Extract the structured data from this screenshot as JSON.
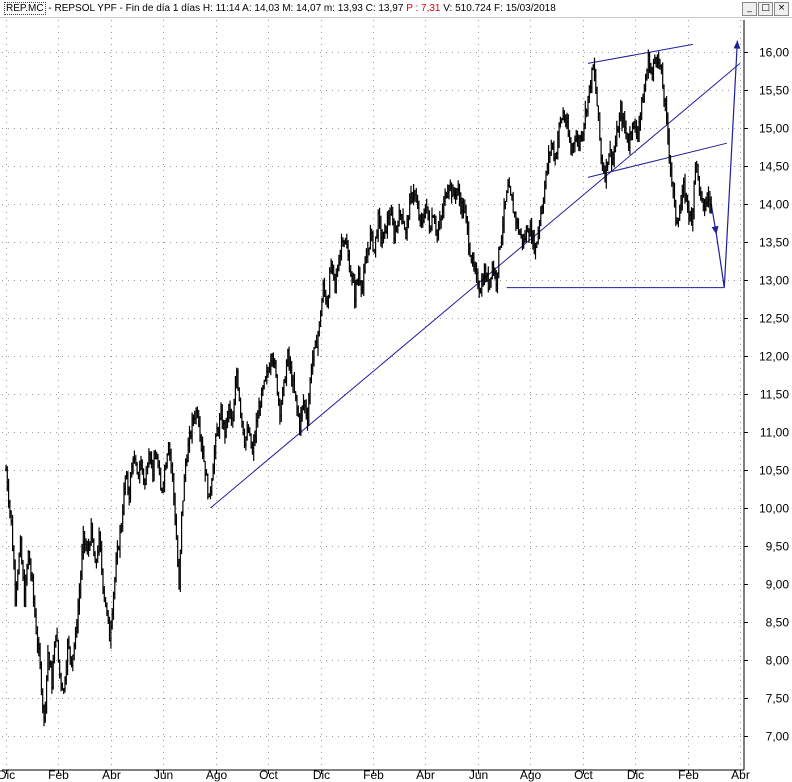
{
  "window": {
    "symbol": "REP.MC",
    "title_rest": " - REPSOL YPF - Fin de día 1 días  H: 11:14  A: 14,03  M: 14,07  m: 13,93  C: 13,97  ",
    "p_value": "P : 7,31",
    "title_tail": "  V: 510.724  F: 15/03/2018",
    "buttons": {
      "minimize": "_",
      "restore": "□",
      "close": "×"
    }
  },
  "chart_data": {
    "type": "line",
    "style": "daily OHLC price bars (black) with blue trendline annotations",
    "y_axis_side": "right",
    "ylim": [
      7.0,
      16.0
    ],
    "y_ticks": [
      7.0,
      7.5,
      8.0,
      8.5,
      9.0,
      9.5,
      10.0,
      10.5,
      11.0,
      11.5,
      12.0,
      12.5,
      13.0,
      13.5,
      14.0,
      14.5,
      15.0,
      15.5,
      16.0
    ],
    "y_tick_labels": [
      "7,00",
      "7,50",
      "8,00",
      "8,50",
      "9,00",
      "9,50",
      "10,00",
      "10,50",
      "11,00",
      "11,50",
      "12,00",
      "12,50",
      "13,00",
      "13,50",
      "14,00",
      "14,50",
      "15,00",
      "15,50",
      "16,00"
    ],
    "x_tick_labels": [
      "Dic",
      "Feb",
      "Abr",
      "Jun",
      "Ago",
      "Oct",
      "Dic",
      "Feb",
      "Abr",
      "Jun",
      "Ago",
      "Oct",
      "Dic",
      "Feb",
      "Abr"
    ],
    "x_tick_months": [
      0,
      2,
      4,
      6,
      8,
      10,
      12,
      14,
      16,
      18,
      20,
      22,
      24,
      26,
      28
    ],
    "x_domain_months": [
      0,
      28.3
    ],
    "grid": true,
    "series": [
      {
        "color": "#000000",
        "points": [
          [
            0.0,
            10.5
          ],
          [
            0.2,
            9.8
          ],
          [
            0.35,
            8.9
          ],
          [
            0.55,
            9.5
          ],
          [
            0.7,
            8.8
          ],
          [
            0.85,
            9.4
          ],
          [
            1.0,
            9.0
          ],
          [
            1.15,
            8.4
          ],
          [
            1.3,
            7.9
          ],
          [
            1.45,
            7.2
          ],
          [
            1.6,
            8.1
          ],
          [
            1.75,
            7.7
          ],
          [
            1.9,
            8.4
          ],
          [
            2.05,
            7.8
          ],
          [
            2.2,
            7.6
          ],
          [
            2.35,
            8.2
          ],
          [
            2.5,
            8.0
          ],
          [
            2.65,
            8.3
          ],
          [
            2.8,
            8.9
          ],
          [
            2.95,
            9.6
          ],
          [
            3.1,
            9.4
          ],
          [
            3.25,
            9.7
          ],
          [
            3.4,
            9.2
          ],
          [
            3.55,
            9.6
          ],
          [
            3.7,
            9.0
          ],
          [
            3.85,
            8.6
          ],
          [
            3.95,
            8.3
          ],
          [
            4.1,
            8.9
          ],
          [
            4.25,
            9.4
          ],
          [
            4.4,
            9.8
          ],
          [
            4.55,
            10.4
          ],
          [
            4.7,
            10.2
          ],
          [
            4.85,
            10.7
          ],
          [
            5.0,
            10.4
          ],
          [
            5.15,
            10.6
          ],
          [
            5.3,
            10.3
          ],
          [
            5.45,
            10.8
          ],
          [
            5.6,
            10.5
          ],
          [
            5.75,
            10.7
          ],
          [
            5.9,
            10.2
          ],
          [
            6.05,
            10.5
          ],
          [
            6.2,
            10.9
          ],
          [
            6.35,
            10.4
          ],
          [
            6.5,
            9.6
          ],
          [
            6.6,
            8.9
          ],
          [
            6.7,
            9.9
          ],
          [
            6.85,
            10.6
          ],
          [
            7.0,
            10.9
          ],
          [
            7.15,
            11.2
          ],
          [
            7.3,
            11.3
          ],
          [
            7.45,
            10.9
          ],
          [
            7.6,
            10.5
          ],
          [
            7.75,
            10.1
          ],
          [
            7.9,
            10.6
          ],
          [
            8.05,
            11.0
          ],
          [
            8.2,
            11.2
          ],
          [
            8.35,
            11.0
          ],
          [
            8.5,
            11.3
          ],
          [
            8.65,
            11.1
          ],
          [
            8.8,
            11.8
          ],
          [
            8.95,
            11.3
          ],
          [
            9.1,
            10.9
          ],
          [
            9.25,
            11.0
          ],
          [
            9.4,
            10.7
          ],
          [
            9.55,
            11.1
          ],
          [
            9.7,
            11.4
          ],
          [
            9.85,
            11.6
          ],
          [
            10.0,
            11.8
          ],
          [
            10.15,
            12.1
          ],
          [
            10.3,
            11.7
          ],
          [
            10.45,
            11.3
          ],
          [
            10.6,
            11.6
          ],
          [
            10.75,
            12.0
          ],
          [
            10.9,
            11.7
          ],
          [
            11.05,
            11.4
          ],
          [
            11.2,
            11.1
          ],
          [
            11.35,
            11.4
          ],
          [
            11.5,
            11.2
          ],
          [
            11.65,
            11.9
          ],
          [
            11.8,
            12.1
          ],
          [
            11.95,
            12.4
          ],
          [
            12.1,
            12.9
          ],
          [
            12.25,
            12.7
          ],
          [
            12.4,
            13.2
          ],
          [
            12.55,
            12.9
          ],
          [
            12.7,
            13.3
          ],
          [
            12.85,
            13.6
          ],
          [
            13.0,
            13.4
          ],
          [
            13.15,
            13.1
          ],
          [
            13.3,
            12.8
          ],
          [
            13.45,
            13.1
          ],
          [
            13.6,
            12.9
          ],
          [
            13.75,
            13.3
          ],
          [
            13.9,
            13.6
          ],
          [
            14.05,
            13.4
          ],
          [
            14.2,
            13.8
          ],
          [
            14.35,
            13.5
          ],
          [
            14.5,
            13.7
          ],
          [
            14.65,
            13.9
          ],
          [
            14.8,
            13.6
          ],
          [
            14.95,
            13.8
          ],
          [
            15.1,
            13.9
          ],
          [
            15.25,
            13.6
          ],
          [
            15.4,
            14.0
          ],
          [
            15.55,
            14.2
          ],
          [
            15.7,
            13.9
          ],
          [
            15.85,
            13.7
          ],
          [
            16.0,
            14.0
          ],
          [
            16.15,
            13.7
          ],
          [
            16.3,
            13.9
          ],
          [
            16.45,
            13.6
          ],
          [
            16.6,
            13.8
          ],
          [
            16.75,
            14.1
          ],
          [
            16.9,
            14.3
          ],
          [
            17.05,
            14.1
          ],
          [
            17.2,
            14.2
          ],
          [
            17.35,
            14.0
          ],
          [
            17.5,
            13.9
          ],
          [
            17.65,
            13.5
          ],
          [
            17.8,
            13.2
          ],
          [
            17.95,
            13.0
          ],
          [
            18.1,
            12.9
          ],
          [
            18.25,
            13.1
          ],
          [
            18.4,
            12.95
          ],
          [
            18.55,
            13.2
          ],
          [
            18.7,
            13.0
          ],
          [
            18.85,
            13.5
          ],
          [
            19.0,
            13.9
          ],
          [
            19.15,
            14.2
          ],
          [
            19.3,
            14.0
          ],
          [
            19.45,
            13.8
          ],
          [
            19.6,
            13.6
          ],
          [
            19.75,
            13.5
          ],
          [
            19.9,
            13.7
          ],
          [
            20.05,
            13.6
          ],
          [
            20.2,
            13.4
          ],
          [
            20.35,
            13.8
          ],
          [
            20.5,
            14.1
          ],
          [
            20.65,
            14.5
          ],
          [
            20.8,
            14.8
          ],
          [
            20.95,
            14.6
          ],
          [
            21.1,
            15.0
          ],
          [
            21.25,
            15.2
          ],
          [
            21.4,
            15.0
          ],
          [
            21.55,
            14.7
          ],
          [
            21.7,
            14.9
          ],
          [
            21.85,
            14.8
          ],
          [
            22.0,
            15.0
          ],
          [
            22.15,
            15.3
          ],
          [
            22.3,
            15.6
          ],
          [
            22.4,
            15.8
          ],
          [
            22.5,
            15.5
          ],
          [
            22.6,
            15.1
          ],
          [
            22.7,
            14.6
          ],
          [
            22.85,
            14.4
          ],
          [
            23.0,
            14.7
          ],
          [
            23.15,
            14.6
          ],
          [
            23.3,
            14.9
          ],
          [
            23.45,
            15.2
          ],
          [
            23.6,
            15.0
          ],
          [
            23.75,
            14.8
          ],
          [
            23.9,
            15.1
          ],
          [
            24.05,
            14.9
          ],
          [
            24.2,
            15.2
          ],
          [
            24.35,
            15.5
          ],
          [
            24.5,
            15.9
          ],
          [
            24.65,
            15.7
          ],
          [
            24.8,
            16.0
          ],
          [
            24.95,
            15.8
          ],
          [
            25.1,
            15.4
          ],
          [
            25.25,
            14.9
          ],
          [
            25.4,
            14.3
          ],
          [
            25.55,
            13.8
          ],
          [
            25.7,
            13.9
          ],
          [
            25.85,
            14.2
          ],
          [
            26.0,
            14.0
          ],
          [
            26.15,
            13.7
          ],
          [
            26.3,
            14.6
          ],
          [
            26.45,
            14.2
          ],
          [
            26.6,
            13.9
          ],
          [
            26.75,
            14.1
          ],
          [
            26.9,
            13.97
          ]
        ]
      }
    ],
    "annotations": {
      "color": "#1f1f9c",
      "lines": [
        [
          [
            7.8,
            10.0
          ],
          [
            28.0,
            15.85
          ]
        ],
        [
          [
            22.2,
            15.85
          ],
          [
            26.2,
            16.1
          ]
        ],
        [
          [
            22.2,
            14.35
          ],
          [
            27.5,
            14.8
          ]
        ],
        [
          [
            19.1,
            12.9
          ],
          [
            27.4,
            12.9
          ]
        ]
      ],
      "polyline": [
        [
          26.9,
          14.0
        ],
        [
          27.1,
          13.6
        ],
        [
          27.4,
          12.9
        ],
        [
          27.9,
          16.15
        ]
      ],
      "arrow_heads": [
        [
          27.1,
          13.6
        ],
        [
          27.9,
          16.15
        ]
      ]
    }
  }
}
